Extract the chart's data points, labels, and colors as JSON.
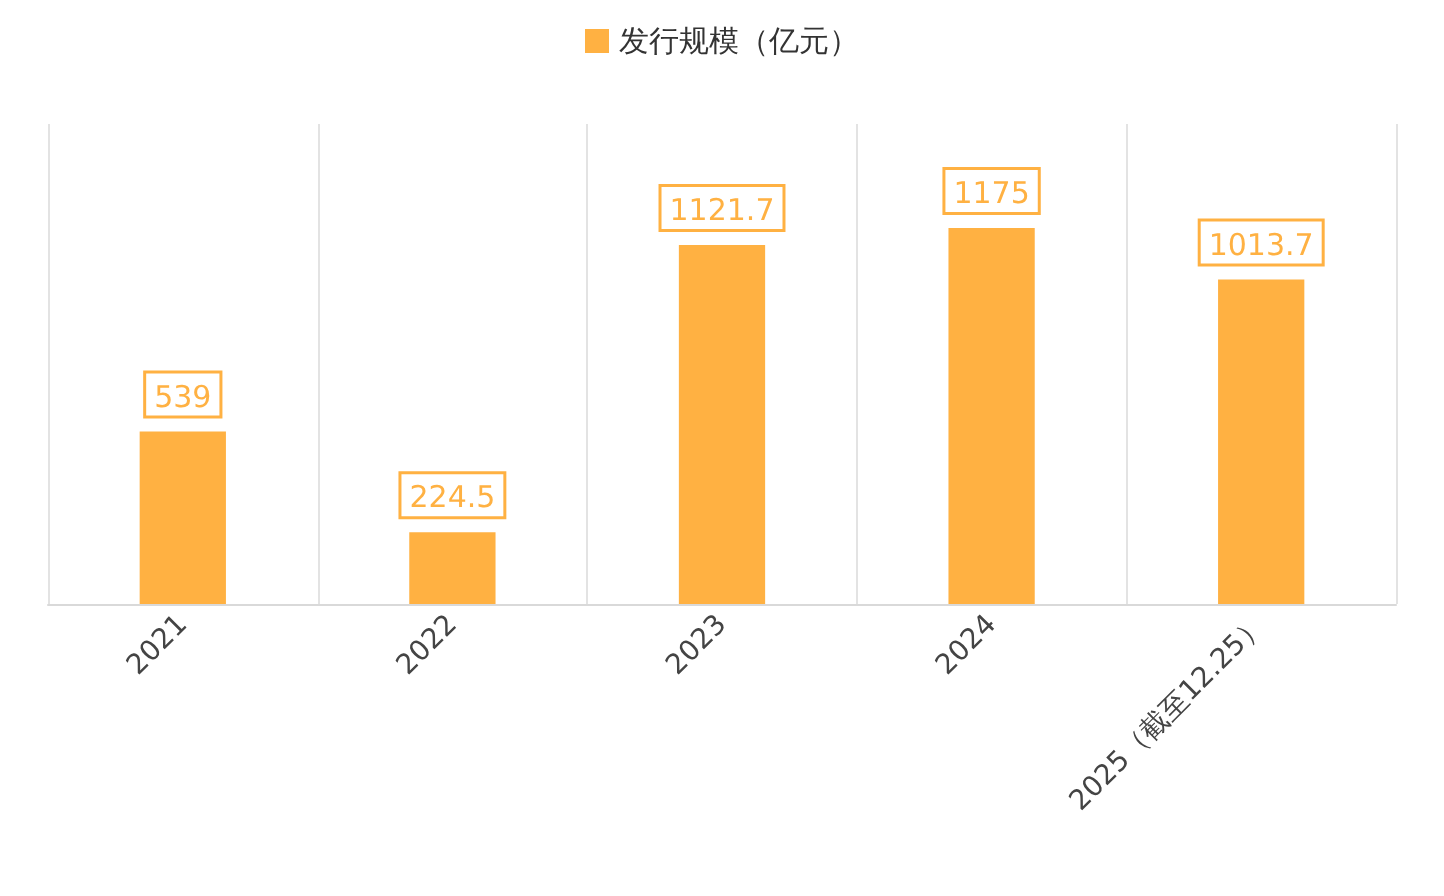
{
  "chart_data": {
    "type": "bar",
    "categories": [
      "2021",
      "2022",
      "2023",
      "2024",
      "2025（截至12.25）"
    ],
    "series": [
      {
        "name": "发行规模（亿元）",
        "color": "#ffb142",
        "values": [
          539,
          224.5,
          1121.7,
          1175,
          1013.7
        ]
      }
    ],
    "data_labels": true,
    "grid": "x",
    "legend": "top"
  }
}
